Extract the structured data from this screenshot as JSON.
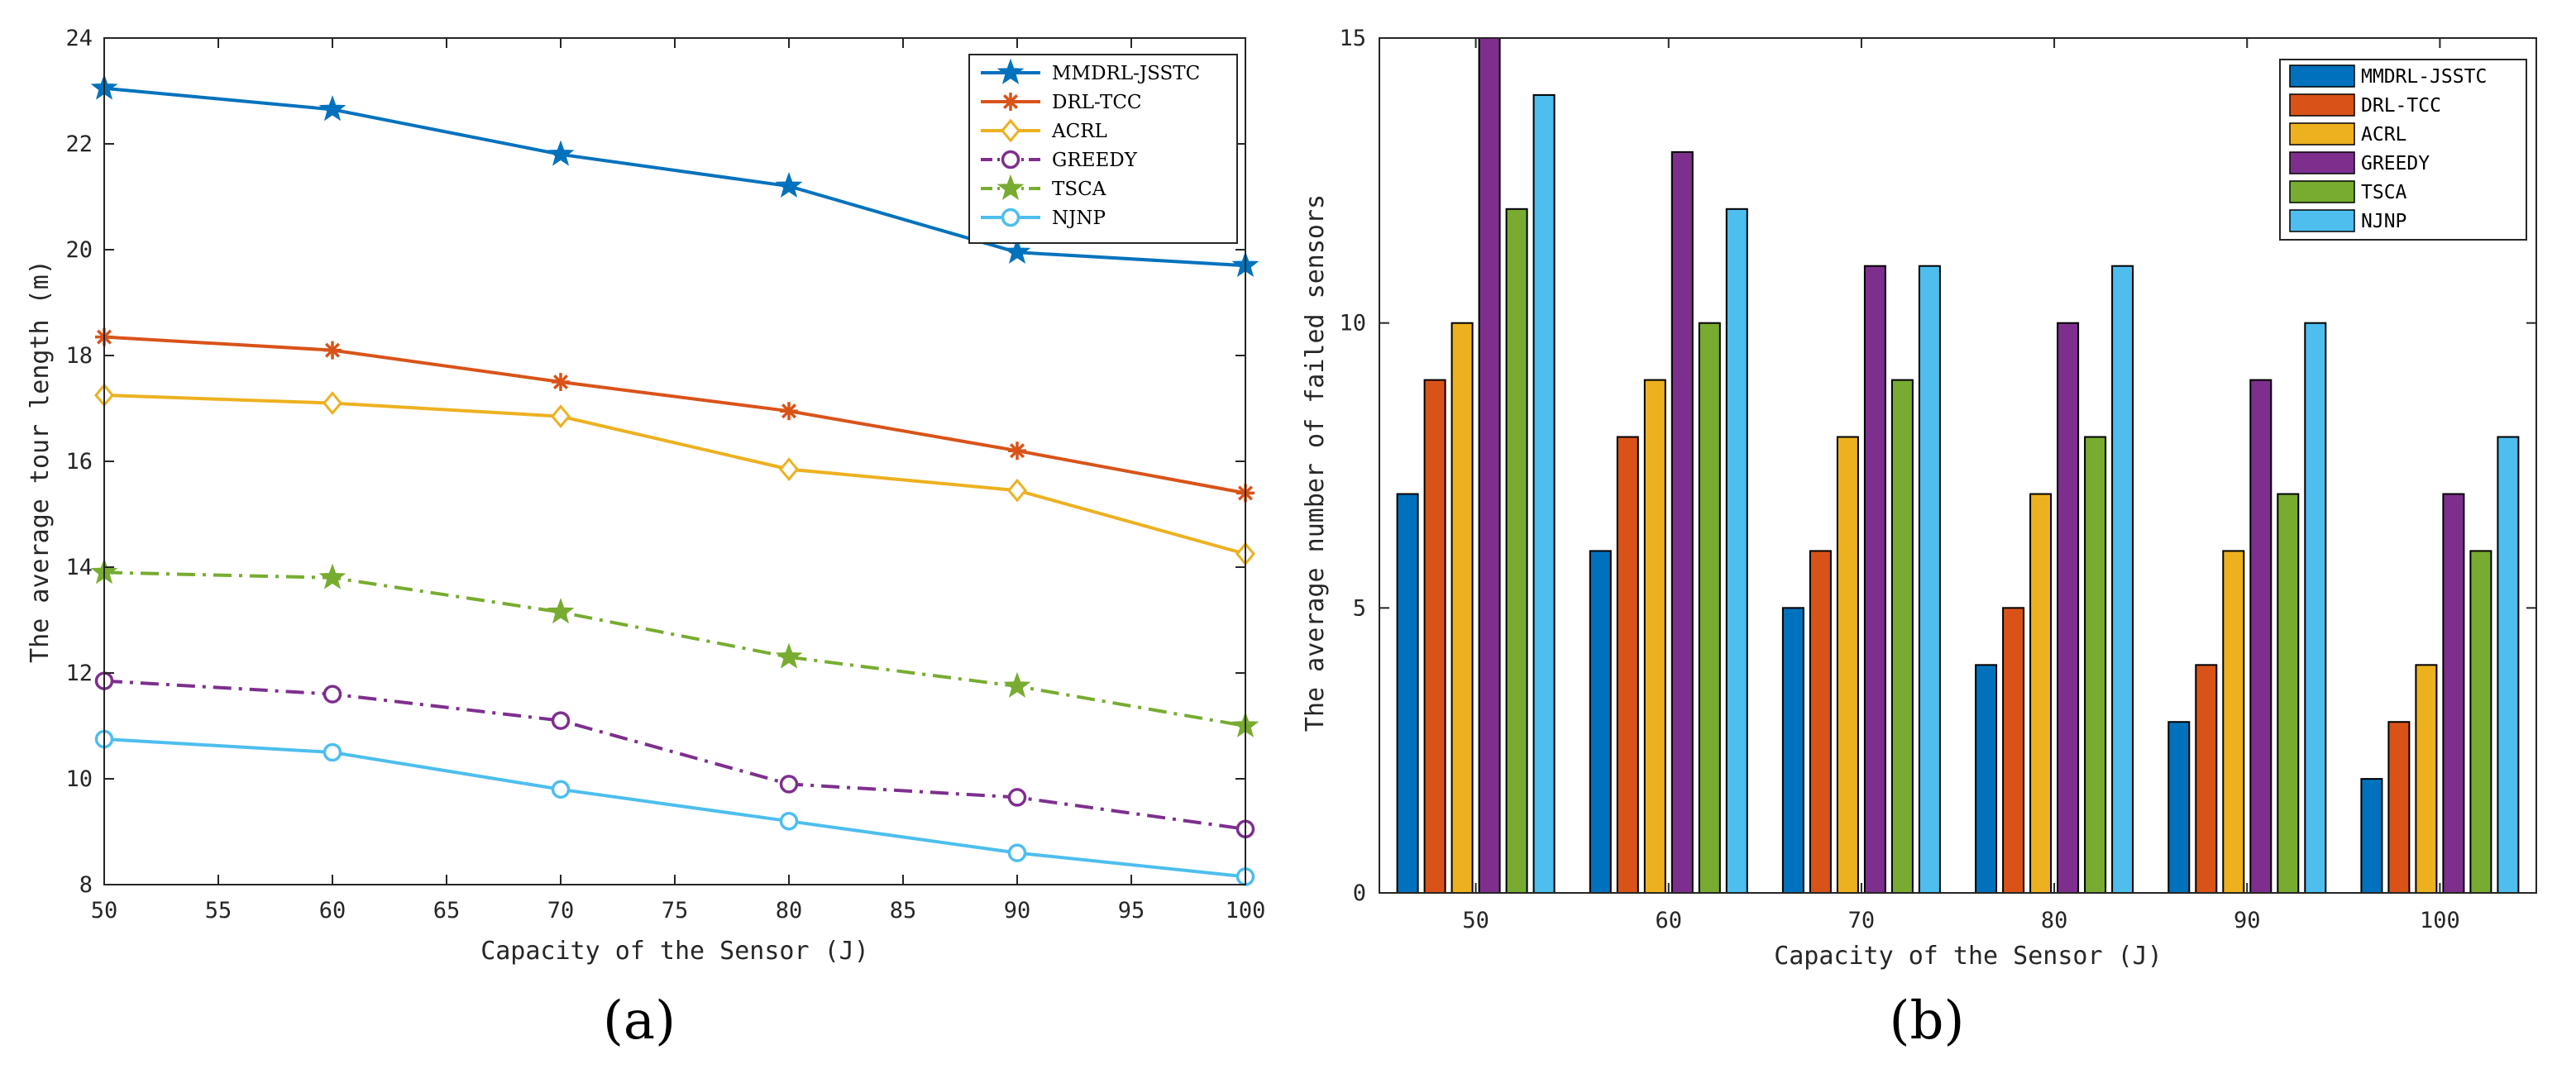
{
  "chart_data": [
    {
      "type": "line",
      "panel_label": "(a)",
      "xlabel": "Capacity of the Sensor (J)",
      "ylabel": "The average tour length (m)",
      "xlim": [
        50,
        100
      ],
      "ylim": [
        8,
        24
      ],
      "x_ticks": [
        "50",
        "55",
        "60",
        "65",
        "70",
        "75",
        "80",
        "85",
        "90",
        "95",
        "100"
      ],
      "y_ticks": [
        "8",
        "10",
        "12",
        "14",
        "16",
        "18",
        "20",
        "22",
        "24"
      ],
      "x": [
        50,
        60,
        70,
        80,
        90,
        100
      ],
      "legend_position": "top-right",
      "series": [
        {
          "name": "MMDRL-JSSTC",
          "color": "#0072BD",
          "marker": "star",
          "dash": "solid",
          "values": [
            23.05,
            22.65,
            21.8,
            21.2,
            19.95,
            19.7
          ]
        },
        {
          "name": "DRL-TCC",
          "color": "#D95319",
          "marker": "asterisk",
          "dash": "solid",
          "values": [
            18.35,
            18.1,
            17.5,
            16.95,
            16.2,
            15.4
          ]
        },
        {
          "name": "ACRL",
          "color": "#EDB120",
          "marker": "diamond",
          "dash": "solid",
          "values": [
            17.25,
            17.1,
            16.85,
            15.85,
            15.45,
            14.25
          ]
        },
        {
          "name": "GREEDY",
          "color": "#7E2F8E",
          "marker": "circle",
          "dash": "dashdot",
          "values": [
            11.85,
            11.6,
            11.1,
            9.9,
            9.65,
            9.05
          ]
        },
        {
          "name": "TSCA",
          "color": "#77AC30",
          "marker": "star",
          "dash": "dashdot",
          "values": [
            13.9,
            13.8,
            13.15,
            12.3,
            11.75,
            11.0
          ]
        },
        {
          "name": "NJNP",
          "color": "#4DBEEE",
          "marker": "circle",
          "dash": "solid",
          "values": [
            10.75,
            10.5,
            9.8,
            9.2,
            8.6,
            8.15
          ]
        }
      ]
    },
    {
      "type": "bar",
      "panel_label": "(b)",
      "xlabel": "Capacity of the Sensor (J)",
      "ylabel": "The average number of failed sensors",
      "categories": [
        "50",
        "60",
        "70",
        "80",
        "90",
        "100"
      ],
      "ylim": [
        0,
        15
      ],
      "y_ticks": [
        "0",
        "5",
        "10",
        "15"
      ],
      "legend_position": "top-right",
      "series": [
        {
          "name": "MMDRL-JSSTC",
          "color": "#0072BD",
          "values": [
            7,
            6,
            5,
            4,
            3,
            2
          ]
        },
        {
          "name": "DRL-TCC",
          "color": "#D95319",
          "values": [
            9,
            8,
            6,
            5,
            4,
            3
          ]
        },
        {
          "name": "ACRL",
          "color": "#EDB120",
          "values": [
            10,
            9,
            8,
            7,
            6,
            4
          ]
        },
        {
          "name": "GREEDY",
          "color": "#7E2F8E",
          "values": [
            15,
            13,
            11,
            10,
            9,
            7
          ]
        },
        {
          "name": "TSCA",
          "color": "#77AC30",
          "values": [
            12,
            10,
            9,
            8,
            7,
            6
          ]
        },
        {
          "name": "NJNP",
          "color": "#4DBEEE",
          "values": [
            14,
            12,
            11,
            11,
            10,
            8
          ]
        }
      ]
    }
  ]
}
